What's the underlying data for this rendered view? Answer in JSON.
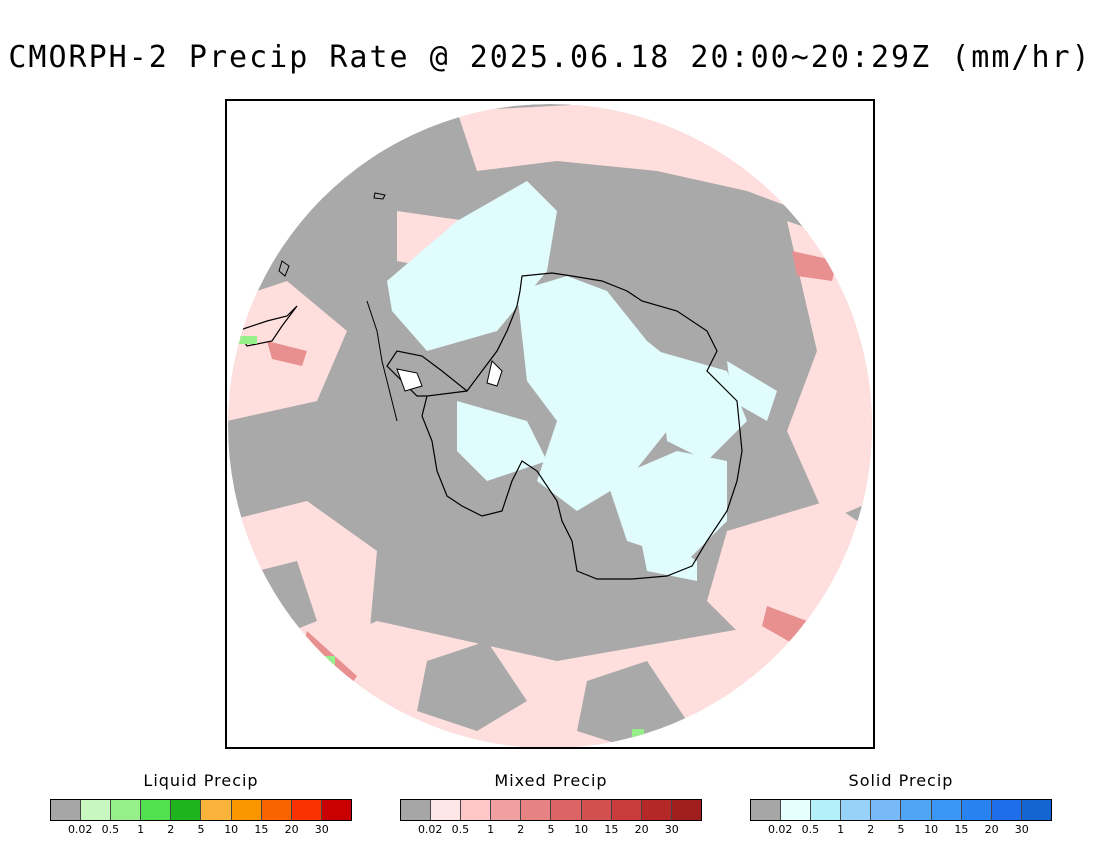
{
  "title": "CMORPH-2 Precip Rate @ 2025.06.18 20:00~20:29Z (mm/hr)",
  "map": {
    "projection": "south polar stereographic",
    "background_color": "#a9a9a9",
    "regions": [
      "Antarctica",
      "South America",
      "Antarctic Peninsula"
    ]
  },
  "legends": [
    {
      "title": "Liquid Precip",
      "colors": [
        "#a6a6a6",
        "#c8f8c0",
        "#96f08a",
        "#50e050",
        "#1eb41e",
        "#fab43c",
        "#fa9600",
        "#fa6400",
        "#fa3200",
        "#c80000"
      ],
      "ticks": [
        "0.02",
        "0.5",
        "1",
        "2",
        "5",
        "10",
        "15",
        "20",
        "30"
      ]
    },
    {
      "title": "Mixed Precip",
      "colors": [
        "#a6a6a6",
        "#ffe6e6",
        "#ffc8c8",
        "#f0a0a0",
        "#e68282",
        "#dc6464",
        "#d25050",
        "#c83c3c",
        "#b42828",
        "#a01e1e"
      ],
      "ticks": [
        "0.02",
        "0.5",
        "1",
        "2",
        "5",
        "10",
        "15",
        "20",
        "30"
      ]
    },
    {
      "title": "Solid Precip",
      "colors": [
        "#a6a6a6",
        "#e6ffff",
        "#b4f0fa",
        "#96d2fa",
        "#78b9fa",
        "#50a5f5",
        "#3c96f5",
        "#2882f0",
        "#1e6eeb",
        "#1464d2"
      ],
      "ticks": [
        "0.02",
        "0.5",
        "1",
        "2",
        "5",
        "10",
        "15",
        "20",
        "30"
      ]
    }
  ]
}
